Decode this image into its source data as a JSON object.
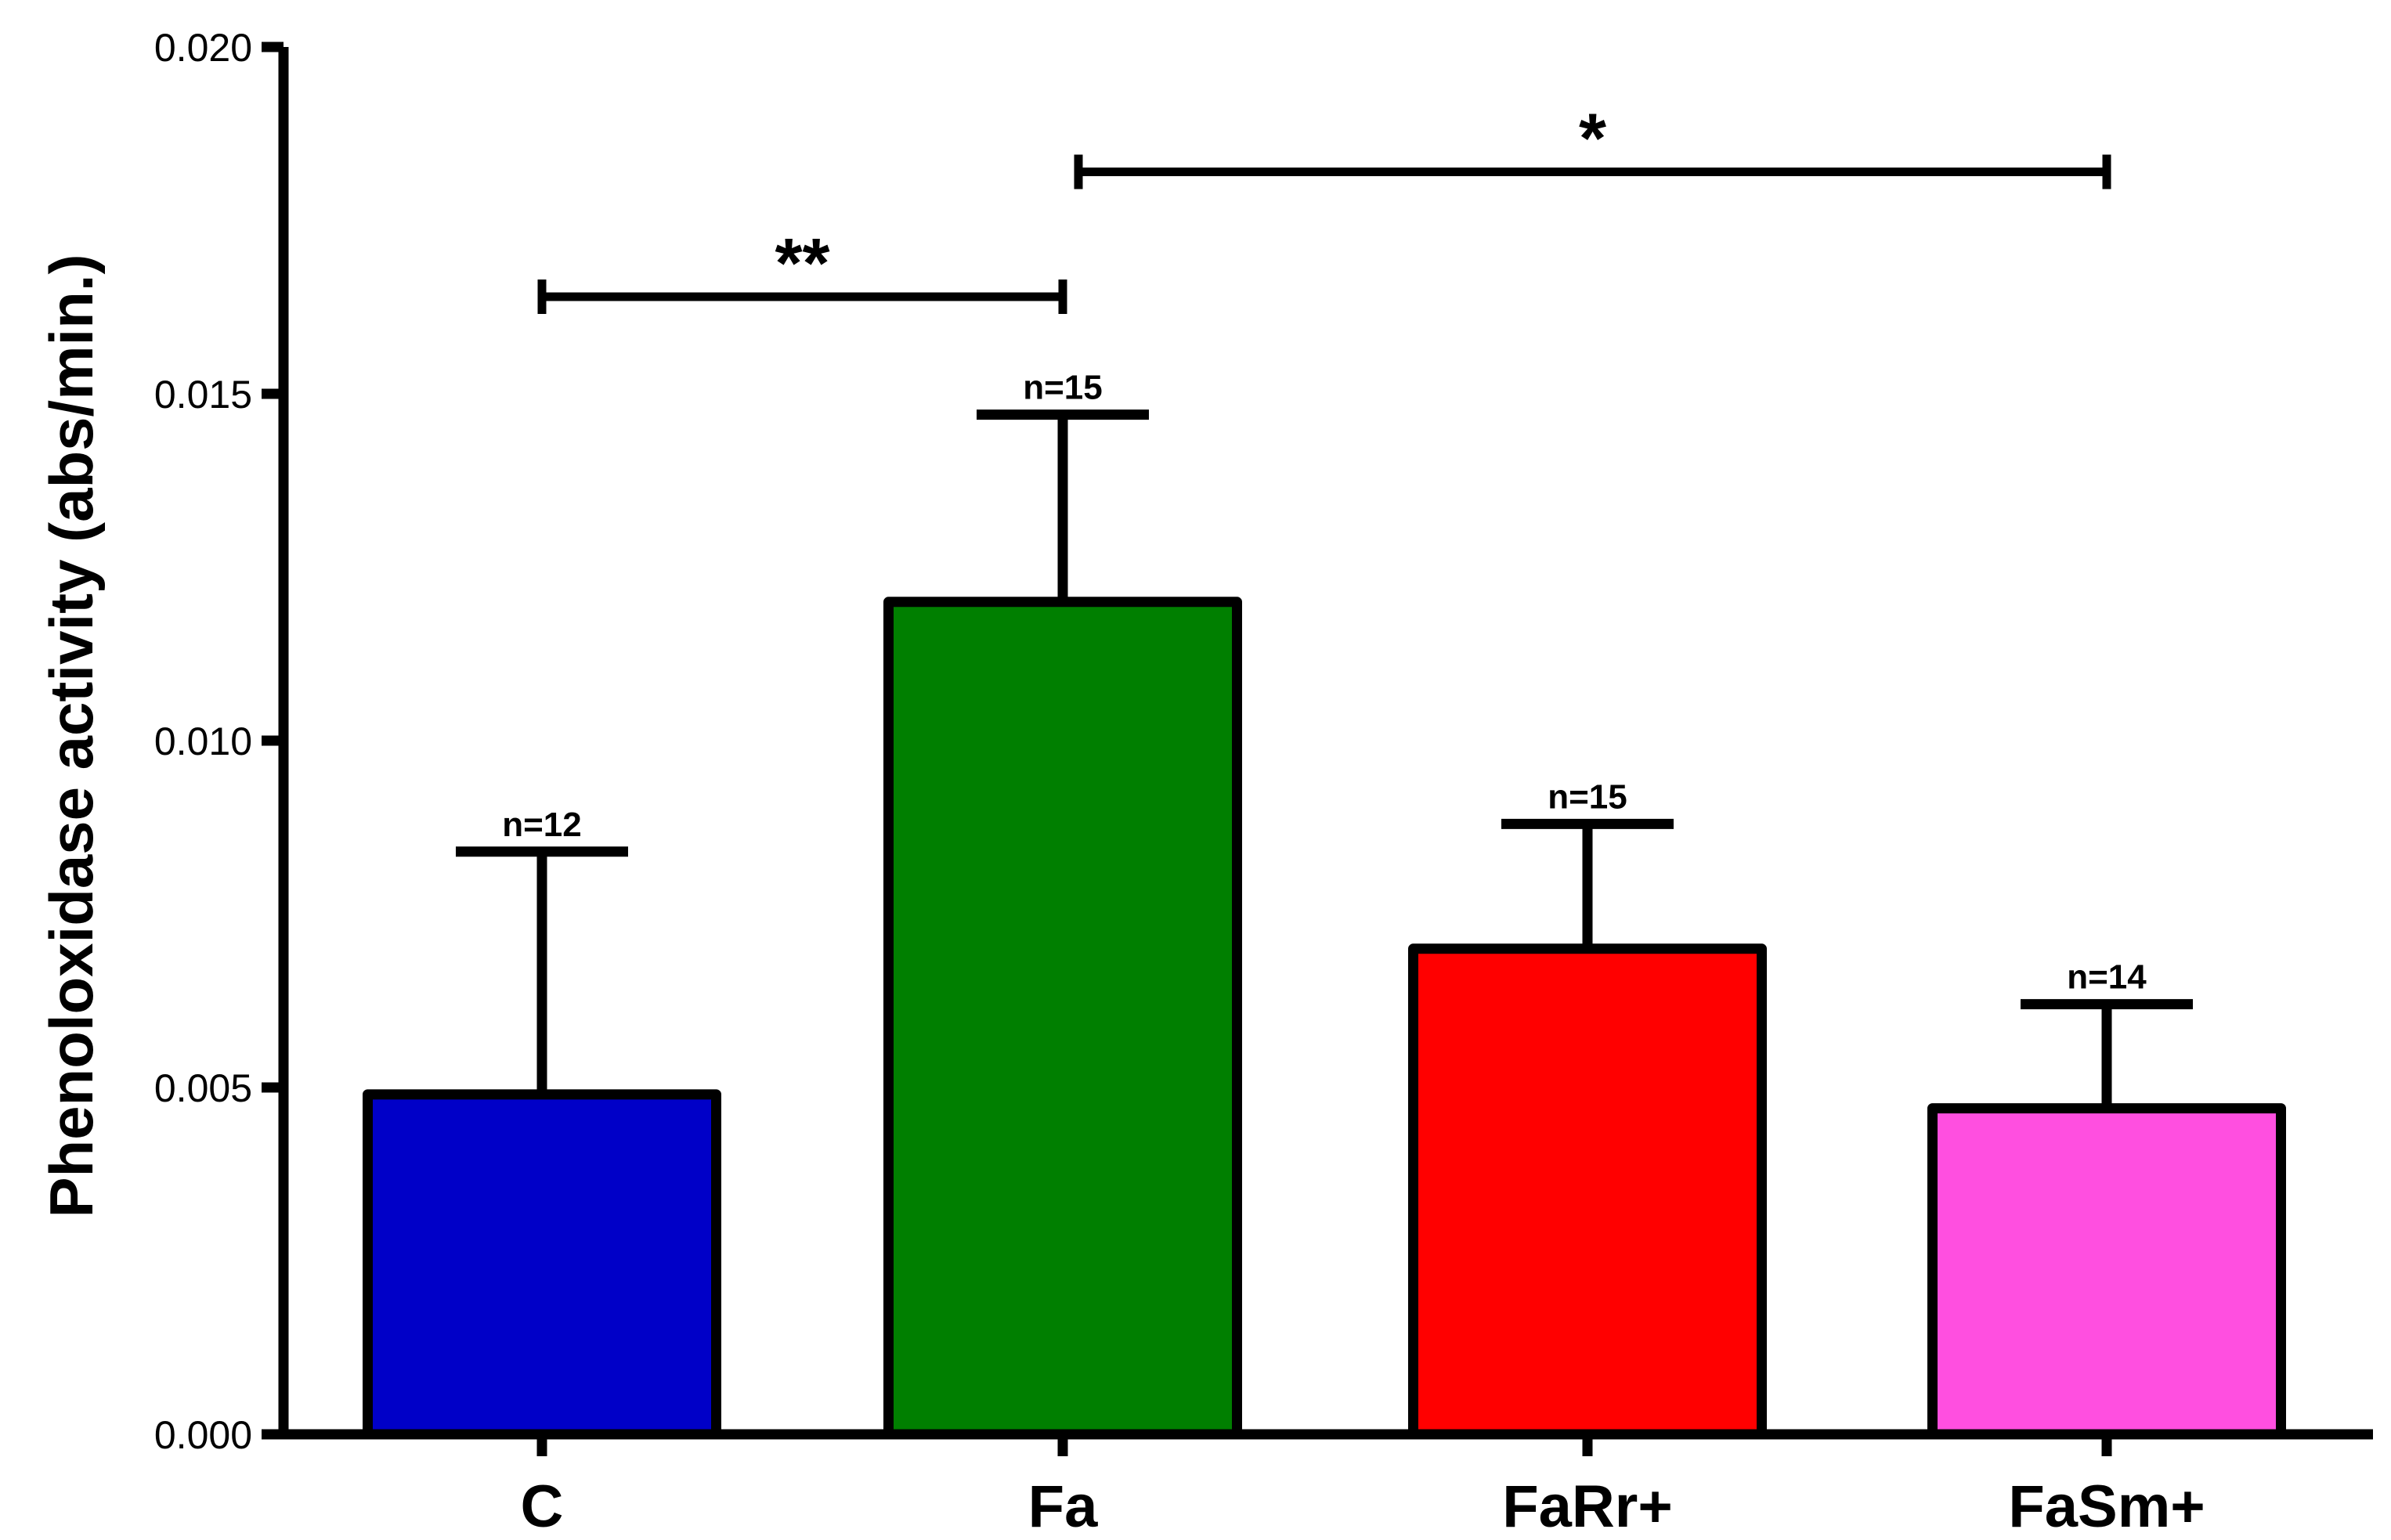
{
  "chart_data": {
    "type": "bar",
    "title": "",
    "xlabel": "",
    "ylabel": "Phenoloxidase activity (abs/min.)",
    "ylim": [
      0,
      0.02
    ],
    "yticks": [
      "0.000",
      "0.005",
      "0.010",
      "0.015",
      "0.020"
    ],
    "ytick_values": [
      0,
      0.005,
      0.01,
      0.015,
      0.02
    ],
    "grid": false,
    "categories": [
      "C",
      "Fa",
      "FaRr+",
      "FaSm+"
    ],
    "values": [
      0.0049,
      0.012,
      0.007,
      0.0047
    ],
    "errors": [
      0.0035,
      0.0027,
      0.0018,
      0.0015
    ],
    "n_labels": [
      "n=12",
      "n=15",
      "n=15",
      "n=14"
    ],
    "colors": [
      "#0000c8",
      "#007f00",
      "#ff0000",
      "#ff4fe0"
    ],
    "significance": [
      {
        "from": 0,
        "to": 1,
        "label": "**",
        "y": 0.0164
      },
      {
        "from": 1,
        "to": 3,
        "label": "*",
        "y": 0.0182
      }
    ]
  }
}
